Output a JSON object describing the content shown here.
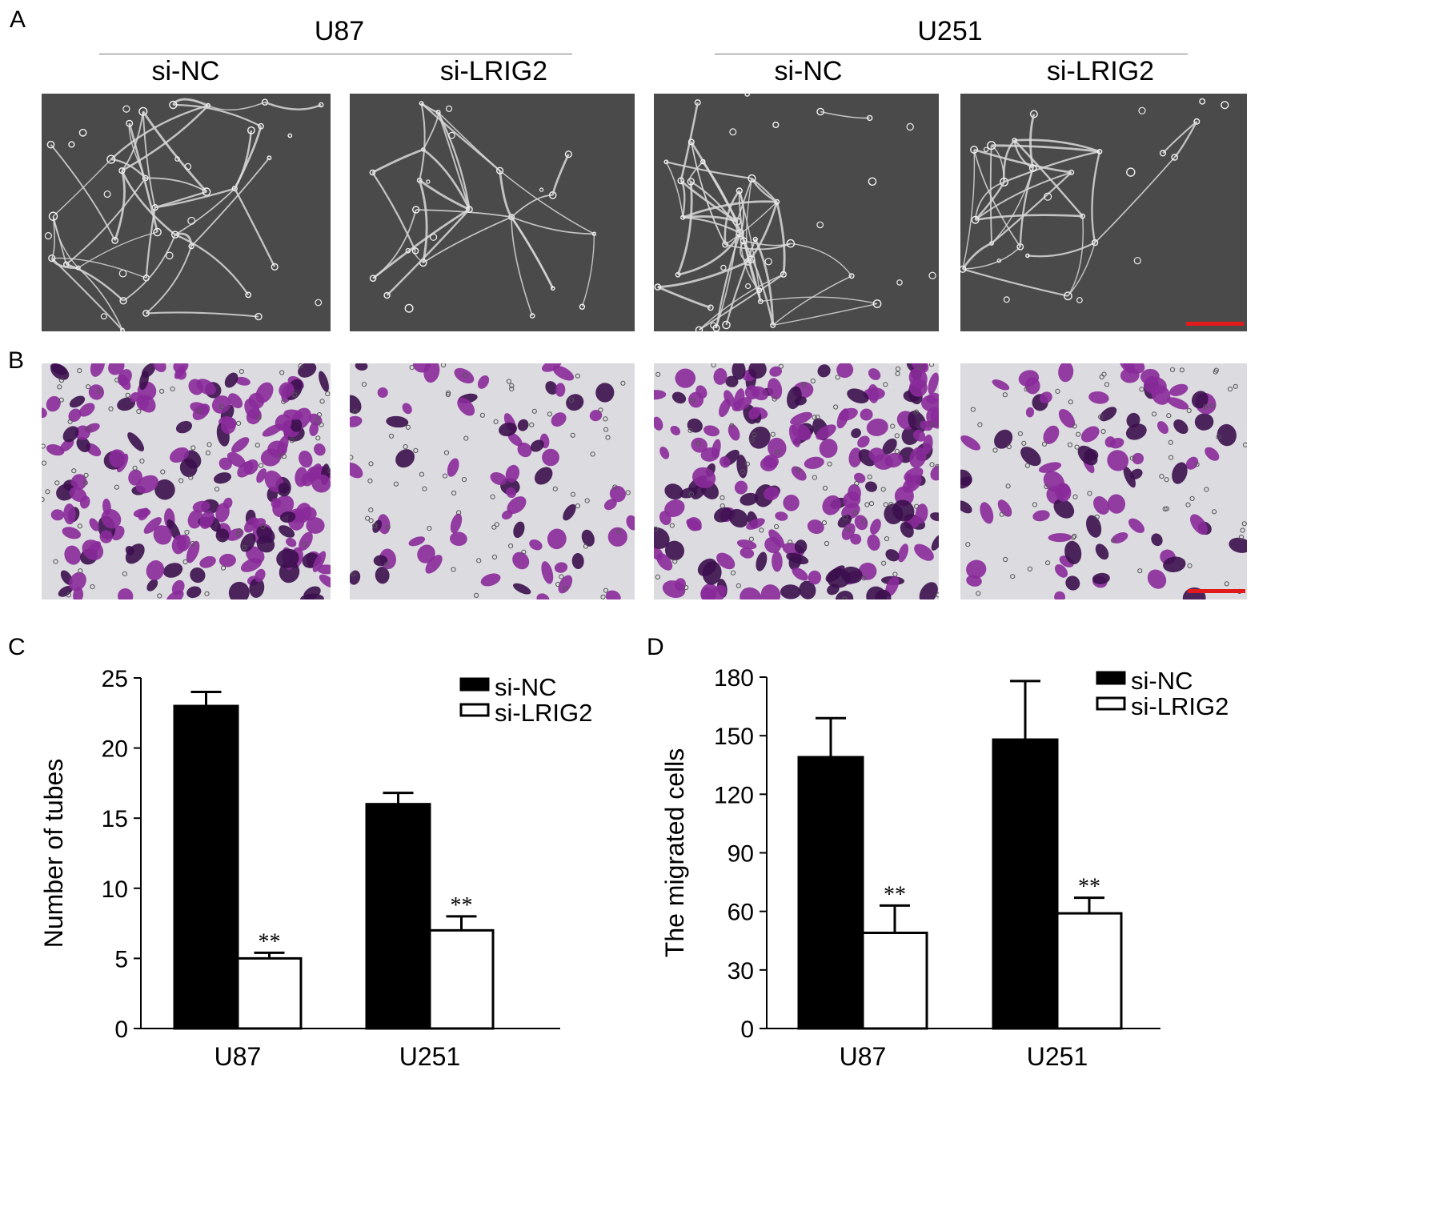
{
  "panels": {
    "a": "A",
    "b": "B",
    "c": "C",
    "d": "D"
  },
  "header": {
    "groups": [
      "U87",
      "U251"
    ],
    "conditions": [
      "si-NC",
      "si-LRIG2",
      "si-NC",
      "si-LRIG2"
    ]
  },
  "colors": {
    "tube_bg": "#4a4a4a",
    "tube_cell": "#d8d8d8",
    "stain_bg": "#dcdbe0",
    "stain_cell": "#8a2a9a",
    "stain_dark": "#3c0f4e",
    "scale_bar": "#e11b1b"
  },
  "chart_data": [
    {
      "type": "bar",
      "panel": "C",
      "categories": [
        "U87",
        "U251"
      ],
      "ylabel": "Number of tubes",
      "xlabel": "",
      "ylim": [
        0,
        25
      ],
      "yticks": [
        0,
        5,
        10,
        15,
        20,
        25
      ],
      "series": [
        {
          "name": "si-NC",
          "fill": "#000000",
          "values": [
            23,
            16
          ],
          "errors": [
            1,
            0.8
          ],
          "annotations": [
            "",
            ""
          ]
        },
        {
          "name": "si-LRIG2",
          "fill": "#ffffff",
          "values": [
            5,
            7
          ],
          "errors": [
            0.4,
            1
          ],
          "annotations": [
            "**",
            "**"
          ]
        }
      ],
      "legend": "top-right"
    },
    {
      "type": "bar",
      "panel": "D",
      "categories": [
        "U87",
        "U251"
      ],
      "ylabel": "The migrated cells",
      "xlabel": "",
      "ylim": [
        0,
        180
      ],
      "yticks": [
        0,
        30,
        60,
        90,
        120,
        150,
        180
      ],
      "series": [
        {
          "name": "si-NC",
          "fill": "#000000",
          "values": [
            139,
            148
          ],
          "errors": [
            20,
            30
          ],
          "annotations": [
            "",
            ""
          ]
        },
        {
          "name": "si-LRIG2",
          "fill": "#ffffff",
          "values": [
            49,
            59
          ],
          "errors": [
            14,
            8
          ],
          "annotations": [
            "**",
            "**"
          ]
        }
      ],
      "legend": "top-right"
    }
  ]
}
